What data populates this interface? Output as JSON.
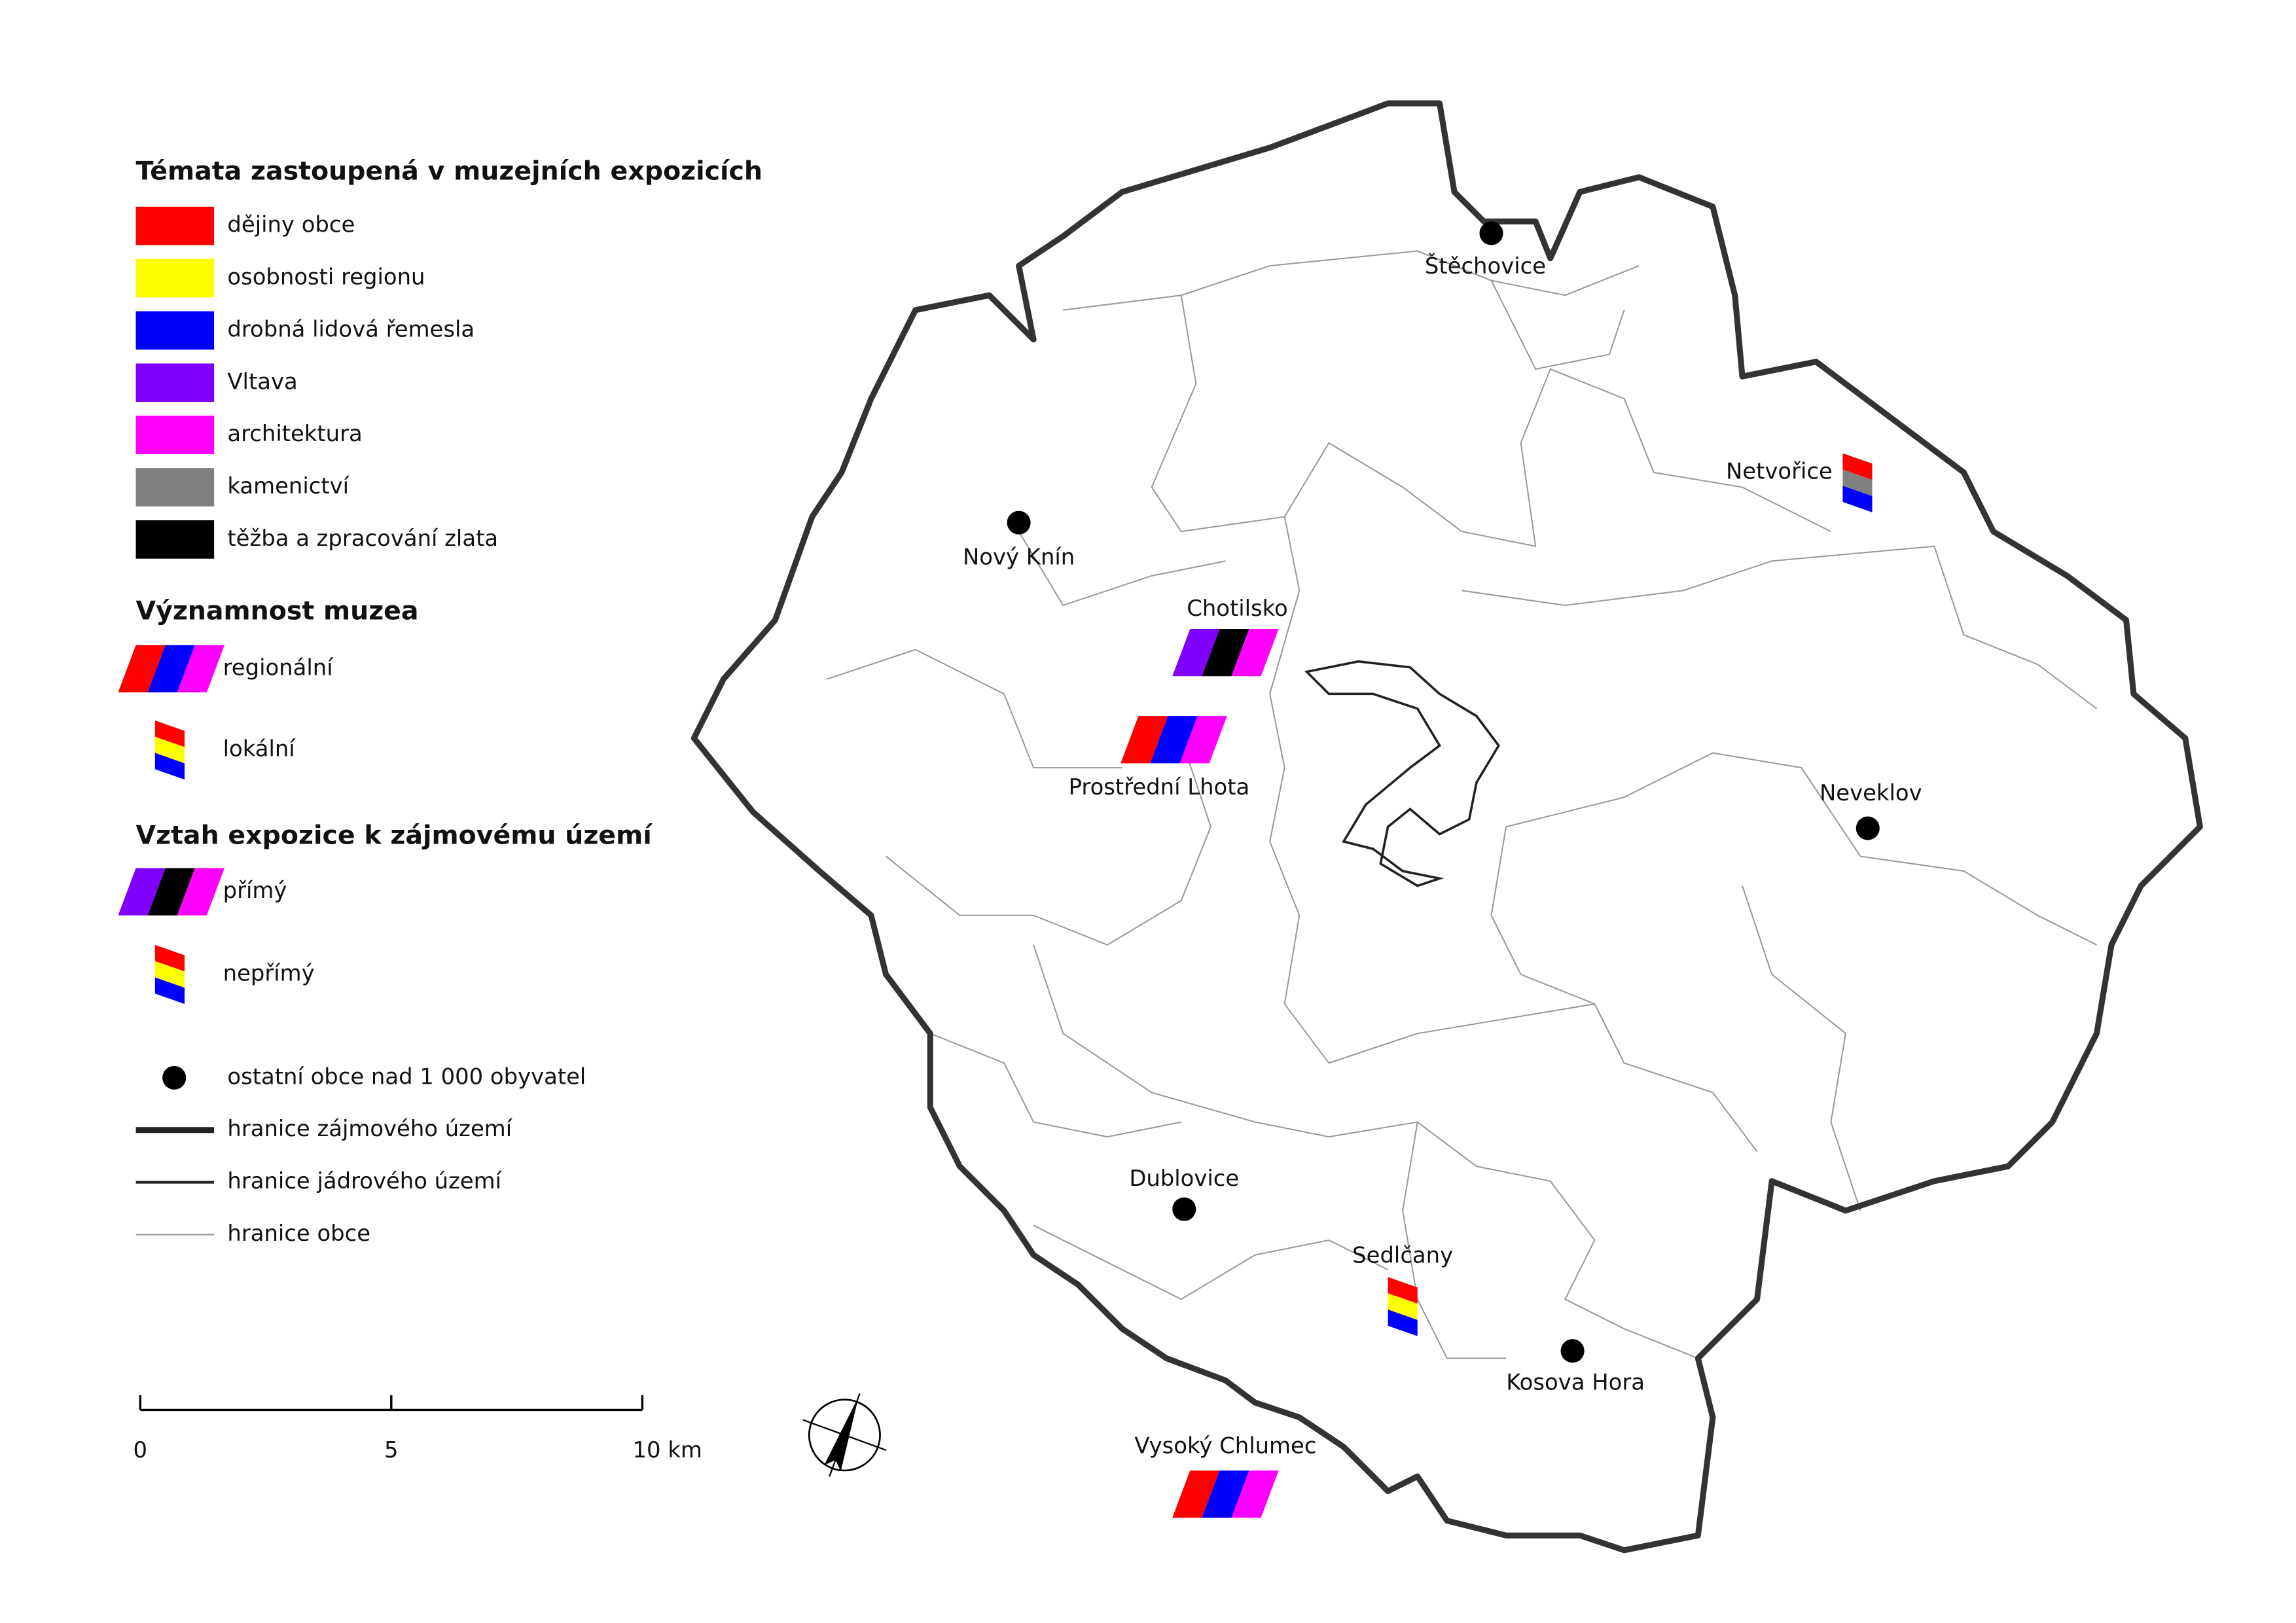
{
  "legend": {
    "themes_title": "Témata zastoupená v muzejních expozicích",
    "themes": [
      {
        "label": "dějiny obce",
        "color": "#ff0000"
      },
      {
        "label": "osobnosti regionu",
        "color": "#ffff00"
      },
      {
        "label": "drobná lidová řemesla",
        "color": "#0000ff"
      },
      {
        "label": "Vltava",
        "color": "#8000ff"
      },
      {
        "label": "architektura",
        "color": "#ff00ff"
      },
      {
        "label": "kamenictví",
        "color": "#808080"
      },
      {
        "label": "těžba a zpracování zlata",
        "color": "#000000"
      }
    ],
    "significance_title": "Významnost muzea",
    "significance": [
      {
        "label": "regionální",
        "symbol": "regional",
        "colors": [
          "#ff0000",
          "#0000ff",
          "#ff00ff"
        ]
      },
      {
        "label": "lokální",
        "symbol": "local",
        "colors": [
          "#ff0000",
          "#ffff00",
          "#0000ff"
        ]
      }
    ],
    "relation_title": "Vztah expozice k zájmovému území",
    "relation": [
      {
        "label": "přímý",
        "symbol": "regional",
        "colors": [
          "#8000ff",
          "#000000",
          "#ff00ff"
        ]
      },
      {
        "label": "nepřímý",
        "symbol": "local",
        "colors": [
          "#ff0000",
          "#ffff00",
          "#0000ff"
        ]
      }
    ],
    "other": [
      {
        "label": "ostatní obce nad 1 000 obyvatel",
        "style": "dot"
      },
      {
        "label": "hranice zájmového území",
        "style": "thick"
      },
      {
        "label": "hranice jádrového území",
        "style": "medium"
      },
      {
        "label": "hranice obce",
        "style": "thin"
      }
    ]
  },
  "scale": [
    "0",
    "5",
    "10 km"
  ],
  "places": [
    {
      "name": "Štěchovice",
      "symbol": "town"
    },
    {
      "name": "Nový Knín",
      "symbol": "town"
    },
    {
      "name": "Neveklov",
      "symbol": "town"
    },
    {
      "name": "Dublovice",
      "symbol": "town"
    },
    {
      "name": "Kosova Hora",
      "symbol": "town"
    },
    {
      "name": "Netvořice",
      "symbol": "local",
      "colors": [
        "#ff0000",
        "#808080",
        "#0000ff"
      ]
    },
    {
      "name": "Chotilsko",
      "symbol": "regional",
      "colors": [
        "#8000ff",
        "#000000",
        "#ff00ff"
      ]
    },
    {
      "name": "Prostřední Lhota",
      "symbol": "regional",
      "colors": [
        "#ff0000",
        "#0000ff",
        "#ff00ff"
      ]
    },
    {
      "name": "Sedlčany",
      "symbol": "local",
      "colors": [
        "#ff0000",
        "#ffff00",
        "#0000ff"
      ]
    },
    {
      "name": "Vysoký Chlumec",
      "symbol": "regional",
      "colors": [
        "#ff0000",
        "#0000ff",
        "#ff00ff"
      ]
    }
  ]
}
